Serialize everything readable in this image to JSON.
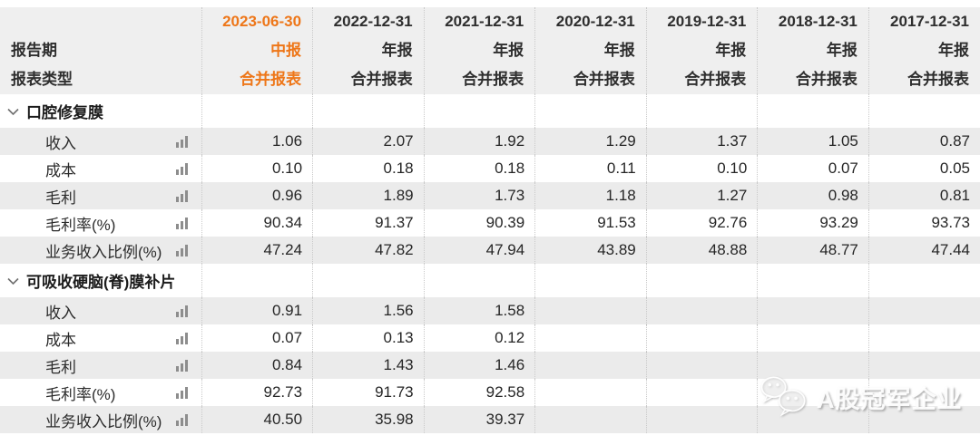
{
  "header": {
    "corner": {
      "period_label": "报告期",
      "type_label": "报表类型"
    },
    "columns": [
      {
        "date": "2023-06-30",
        "period": "中报",
        "report_type": "合并报表",
        "highlighted": true
      },
      {
        "date": "2022-12-31",
        "period": "年报",
        "report_type": "合并报表",
        "highlighted": false
      },
      {
        "date": "2021-12-31",
        "period": "年报",
        "report_type": "合并报表",
        "highlighted": false
      },
      {
        "date": "2020-12-31",
        "period": "年报",
        "report_type": "合并报表",
        "highlighted": false
      },
      {
        "date": "2019-12-31",
        "period": "年报",
        "report_type": "合并报表",
        "highlighted": false
      },
      {
        "date": "2018-12-31",
        "period": "年报",
        "report_type": "合并报表",
        "highlighted": false
      },
      {
        "date": "2017-12-31",
        "period": "年报",
        "report_type": "合并报表",
        "highlighted": false
      }
    ]
  },
  "sections": [
    {
      "title": "口腔修复膜",
      "rows": [
        {
          "label": "收入",
          "values": [
            "1.06",
            "2.07",
            "1.92",
            "1.29",
            "1.37",
            "1.05",
            "0.87"
          ]
        },
        {
          "label": "成本",
          "values": [
            "0.10",
            "0.18",
            "0.18",
            "0.11",
            "0.10",
            "0.07",
            "0.05"
          ]
        },
        {
          "label": "毛利",
          "values": [
            "0.96",
            "1.89",
            "1.73",
            "1.18",
            "1.27",
            "0.98",
            "0.81"
          ]
        },
        {
          "label": "毛利率(%)",
          "values": [
            "90.34",
            "91.37",
            "90.39",
            "91.53",
            "92.76",
            "93.29",
            "93.73"
          ]
        },
        {
          "label": "业务收入比例(%)",
          "values": [
            "47.24",
            "47.82",
            "47.94",
            "43.89",
            "48.88",
            "48.77",
            "47.44"
          ]
        }
      ]
    },
    {
      "title": "可吸收硬脑(脊)膜补片",
      "rows": [
        {
          "label": "收入",
          "values": [
            "0.91",
            "1.56",
            "1.58",
            "",
            "",
            "",
            ""
          ]
        },
        {
          "label": "成本",
          "values": [
            "0.07",
            "0.13",
            "0.12",
            "",
            "",
            "",
            ""
          ]
        },
        {
          "label": "毛利",
          "values": [
            "0.84",
            "1.43",
            "1.46",
            "",
            "",
            "",
            ""
          ]
        },
        {
          "label": "毛利率(%)",
          "values": [
            "92.73",
            "91.73",
            "92.58",
            "",
            "",
            "",
            ""
          ]
        },
        {
          "label": "业务收入比例(%)",
          "values": [
            "40.50",
            "35.98",
            "39.37",
            "",
            "",
            "",
            ""
          ]
        }
      ]
    }
  ],
  "watermark": {
    "text": "A股冠军企业"
  },
  "icons": {
    "row_metric": "bar-chart-icon",
    "section_toggle": "chevron-down-icon",
    "watermark_logo": "wechat-icon"
  },
  "colors": {
    "accent_orange": "#ee7618",
    "header_gray": "#efefef",
    "stripe_gray": "#ebebeb",
    "dotted_border": "#c9c9c9",
    "text_dark": "#2b2b2b",
    "icon_gray": "#8d8d8d"
  }
}
